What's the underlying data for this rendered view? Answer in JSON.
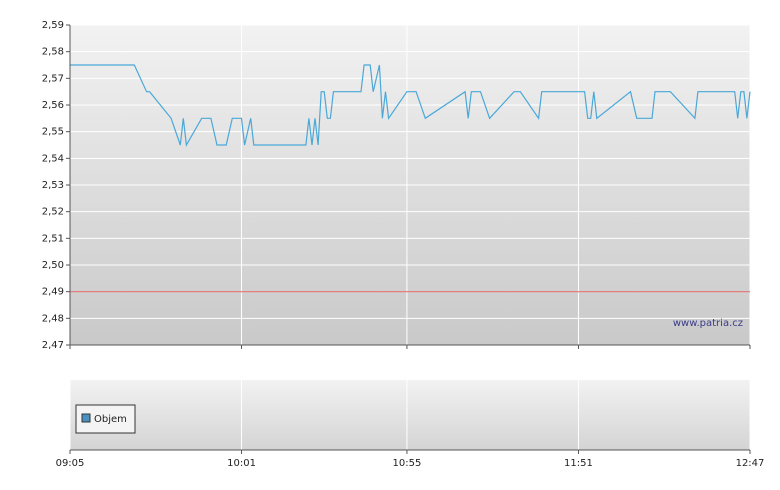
{
  "chart_data": {
    "type": "line",
    "xlim": [
      "09:05",
      "12:47"
    ],
    "xticks": [
      "09:05",
      "10:01",
      "10:55",
      "11:51",
      "12:47"
    ],
    "ylim": [
      2.47,
      2.59
    ],
    "yticks": [
      {
        "value": 2.47,
        "label": "2,47"
      },
      {
        "value": 2.48,
        "label": "2,48"
      },
      {
        "value": 2.49,
        "label": "2,49"
      },
      {
        "value": 2.5,
        "label": "2,50"
      },
      {
        "value": 2.51,
        "label": "2,51"
      },
      {
        "value": 2.52,
        "label": "2,52"
      },
      {
        "value": 2.53,
        "label": "2,53"
      },
      {
        "value": 2.54,
        "label": "2,54"
      },
      {
        "value": 2.55,
        "label": "2,55"
      },
      {
        "value": 2.56,
        "label": "2,56"
      },
      {
        "value": 2.57,
        "label": "2,57"
      },
      {
        "value": 2.58,
        "label": "2,58"
      },
      {
        "value": 2.59,
        "label": "2,59"
      }
    ],
    "grid": true,
    "annotation": "www.patria.cz",
    "reference_line": {
      "value": 2.49,
      "color": "#e07070"
    },
    "series": [
      {
        "color": "#4aa8d8",
        "x": [
          "09:05",
          "09:26",
          "09:30",
          "09:31",
          "09:38",
          "09:41",
          "09:42",
          "09:43",
          "09:48",
          "09:51",
          "09:53",
          "09:56",
          "09:58",
          "10:01",
          "10:02",
          "10:04",
          "10:05",
          "10:22",
          "10:23",
          "10:24",
          "10:25",
          "10:26",
          "10:27",
          "10:28",
          "10:29",
          "10:30",
          "10:31",
          "10:40",
          "10:41",
          "10:43",
          "10:44",
          "10:46",
          "10:47",
          "10:48",
          "10:49",
          "10:55",
          "10:58",
          "11:01",
          "11:14",
          "11:15",
          "11:16",
          "11:19",
          "11:22",
          "11:30",
          "11:32",
          "11:38",
          "11:39",
          "11:53",
          "11:54",
          "11:55",
          "11:56",
          "11:57",
          "12:08",
          "12:10",
          "12:15",
          "12:16",
          "12:21",
          "12:29",
          "12:30",
          "12:42",
          "12:43",
          "12:44",
          "12:45",
          "12:46",
          "12:47"
        ],
        "values": [
          2.575,
          2.575,
          2.565,
          2.565,
          2.555,
          2.545,
          2.555,
          2.545,
          2.555,
          2.555,
          2.545,
          2.545,
          2.555,
          2.555,
          2.545,
          2.555,
          2.545,
          2.545,
          2.555,
          2.545,
          2.555,
          2.545,
          2.565,
          2.565,
          2.555,
          2.555,
          2.565,
          2.565,
          2.575,
          2.575,
          2.565,
          2.575,
          2.555,
          2.565,
          2.555,
          2.565,
          2.565,
          2.555,
          2.565,
          2.555,
          2.565,
          2.565,
          2.555,
          2.565,
          2.565,
          2.555,
          2.565,
          2.565,
          2.555,
          2.555,
          2.565,
          2.555,
          2.565,
          2.555,
          2.555,
          2.565,
          2.565,
          2.555,
          2.565,
          2.565,
          2.555,
          2.565,
          2.565,
          2.555,
          2.565
        ]
      }
    ],
    "volume_panel": {
      "legend": "Objem",
      "color": "#4a90c0"
    }
  }
}
